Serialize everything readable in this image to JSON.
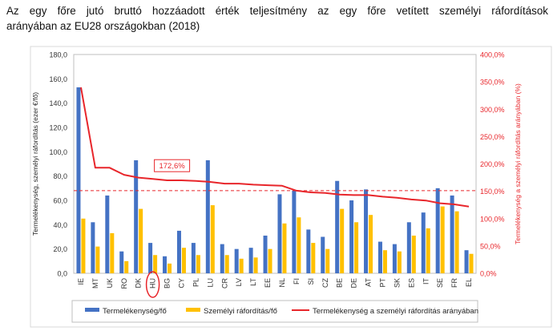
{
  "chart_data": {
    "type": "bar",
    "title_line1": "Az egy főre jutó bruttó hozzáadott érték teljesítmény az egy főre vetített személyi ráfordítások",
    "title_line2": "arányában az EU28 országokban (2018)",
    "ylabel_left": "Termelékenység, személyi ráfordítás (ezer €/fő)",
    "ylabel_right": "Termelékenység a személyi ráfordítás arányában (%)",
    "left_ticks": [
      "0,0",
      "20,0",
      "40,0",
      "60,0",
      "80,0",
      "100,0",
      "120,0",
      "140,0",
      "160,0",
      "180,0"
    ],
    "right_ticks": [
      "0,0%",
      "50,0%",
      "100,0%",
      "150,0%",
      "200,0%",
      "250,0%",
      "300,0%",
      "350,0%",
      "400,0%"
    ],
    "ylim_left": [
      0,
      180
    ],
    "ylim_right": [
      0,
      400
    ],
    "categories": [
      "IE",
      "MT",
      "UK",
      "RO",
      "DK",
      "HU",
      "BG",
      "CY",
      "PL",
      "LU",
      "CR",
      "LV",
      "LT",
      "EE",
      "NL",
      "FI",
      "SI",
      "CZ",
      "BE",
      "DE",
      "AT",
      "PT",
      "SK",
      "ES",
      "IT",
      "SE",
      "FR",
      "EL"
    ],
    "highlight_category": "HU",
    "series": [
      {
        "name": "Termelékenység/fő",
        "type": "bar",
        "color": "#4472C4",
        "values": [
          153,
          42,
          64,
          18,
          93,
          25,
          14,
          35,
          25,
          93,
          24,
          20,
          21,
          31,
          65,
          68,
          36,
          30,
          76,
          60,
          69,
          26,
          24,
          42,
          50,
          70,
          64,
          19
        ]
      },
      {
        "name": "Személyi ráfordítás/fő",
        "type": "bar",
        "color": "#FFC000",
        "values": [
          45,
          22,
          33,
          10,
          53,
          15,
          8,
          21,
          15,
          56,
          15,
          12,
          13,
          20,
          41,
          46,
          25,
          20,
          53,
          42,
          48,
          19,
          18,
          31,
          37,
          55,
          51,
          16
        ]
      },
      {
        "name": "Termelékenység a személyi ráfordítás arányában",
        "type": "line",
        "axis": "right",
        "color": "#E8262B",
        "values": [
          340,
          193,
          193,
          180,
          175,
          172.6,
          170,
          170,
          169,
          167,
          164,
          164,
          162,
          161,
          160,
          151,
          148,
          147,
          144,
          143,
          143,
          140,
          138,
          135,
          133,
          128,
          126,
          122
        ]
      }
    ],
    "reference_line": {
      "axis": "left",
      "value": 68,
      "style": "dashed",
      "color": "#E8262B"
    },
    "annotation": {
      "text": "172,6%",
      "category": "HU",
      "color": "#E8262B"
    },
    "grid": false,
    "legend_position": "bottom"
  }
}
